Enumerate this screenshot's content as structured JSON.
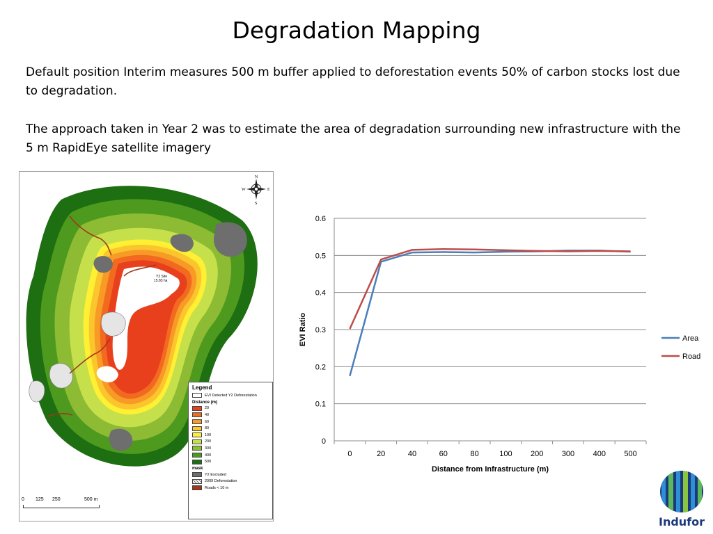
{
  "slide": {
    "title": "Degradation Mapping",
    "paragraph1": "Default position Interim measures 500 m buffer applied to deforestation events 50% of carbon stocks lost due to degradation.",
    "paragraph2": "The approach taken in Year 2 was to estimate the area of degradation surrounding new infrastructure with the 5 m RapidEye satellite imagery"
  },
  "map": {
    "site_label": "Y2 Site",
    "site_area": "15.83 ha",
    "compass": {
      "n": "N",
      "s": "S",
      "e": "E",
      "w": "W"
    },
    "scale": {
      "t0": "0",
      "t1": "125",
      "t2": "250",
      "t3": "500 m"
    },
    "legend": {
      "title": "Legend",
      "evi_label": "EVI Detected Y2 Deforestation",
      "distance_heading": "Distance (m)",
      "distance_items": [
        {
          "label": "20",
          "color": "#e8401c"
        },
        {
          "label": "40",
          "color": "#f26a1f"
        },
        {
          "label": "60",
          "color": "#f79a26"
        },
        {
          "label": "80",
          "color": "#fbc52d"
        },
        {
          "label": "100",
          "color": "#fff033"
        },
        {
          "label": "200",
          "color": "#c6e04c"
        },
        {
          "label": "300",
          "color": "#8dbb33"
        },
        {
          "label": "400",
          "color": "#4e9a1f"
        },
        {
          "label": "500",
          "color": "#1e6e12"
        }
      ],
      "mask_heading": "mask",
      "mask_items": [
        {
          "label": "Y2 Excluded",
          "color": "#6e6e6e"
        },
        {
          "label": "2009 Deforestation",
          "color": "#ffffff"
        },
        {
          "label": "Roads < 10 m",
          "color": "#a0381a"
        }
      ]
    }
  },
  "chart_data": {
    "type": "line",
    "categories": [
      "0",
      "20",
      "40",
      "60",
      "80",
      "100",
      "200",
      "300",
      "400",
      "500"
    ],
    "series": [
      {
        "name": "Area",
        "color": "#4a7ebb",
        "values": [
          0.175,
          0.483,
          0.508,
          0.509,
          0.508,
          0.51,
          0.511,
          0.513,
          0.513,
          0.51
        ]
      },
      {
        "name": "Road",
        "color": "#be4b48",
        "values": [
          0.302,
          0.489,
          0.515,
          0.517,
          0.516,
          0.514,
          0.512,
          0.511,
          0.512,
          0.511
        ]
      }
    ],
    "xlabel": "Distance from Infrastructure (m)",
    "ylabel": "EVI Ratio",
    "ylim": [
      0,
      0.6
    ],
    "yticks": [
      "0",
      "0.1",
      "0.2",
      "0.3",
      "0.4",
      "0.5",
      "0.6"
    ],
    "grid": true,
    "legend_position": "right"
  },
  "logo": {
    "text": "Indufor",
    "color": "#1a3a7a"
  }
}
